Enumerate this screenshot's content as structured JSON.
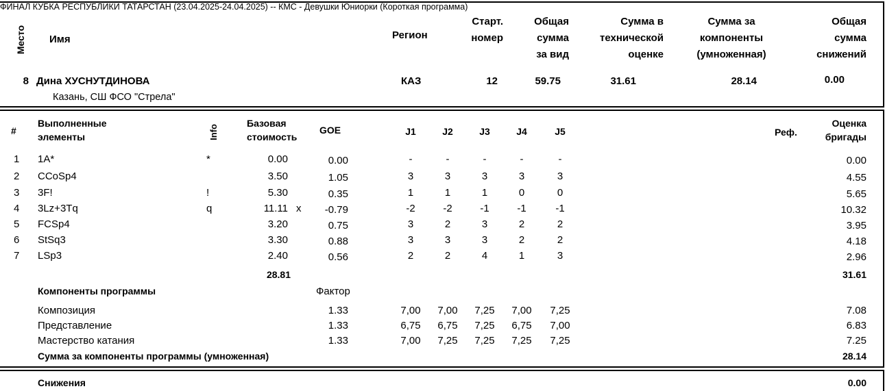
{
  "header": {
    "title": "ФИНАЛ КУБКА РЕСПУБЛИКИ ТАТАРСТАН (23.04.2025-24.04.2025)  --  КМС - Девушки Юниорки  (Короткая программа)",
    "col_place": "Место",
    "col_name": "Имя",
    "col_region": "Регион",
    "col_start_1": "Старт.",
    "col_start_2": "номер",
    "col_total_1": "Общая",
    "col_total_2": "сумма",
    "col_total_3": "за вид",
    "col_tech_1": "Сумма в",
    "col_tech_2": "технической",
    "col_tech_3": "оценке",
    "col_comp_1": "Сумма за",
    "col_comp_2": "компоненты",
    "col_comp_3": "(умноженная)",
    "col_ded_1": "Общая",
    "col_ded_2": "сумма",
    "col_ded_3": "снижений"
  },
  "skater": {
    "place": "8",
    "name": "Дина ХУСНУТДИНОВА",
    "club": "Казань, СШ ФСО \"Стрела\"",
    "region": "КАЗ",
    "start_no": "12",
    "total": "59.75",
    "tes": "31.61",
    "pcs": "28.14",
    "deductions": "0.00"
  },
  "elements_header": {
    "num": "#",
    "elements_1": "Выполненные",
    "elements_2": "элементы",
    "info": "Info",
    "base_1": "Базовая",
    "base_2": "стоимость",
    "goe": "GOE",
    "j1": "J1",
    "j2": "J2",
    "j3": "J3",
    "j4": "J4",
    "j5": "J5",
    "ref": "Реф.",
    "score_1": "Оценка",
    "score_2": "бригады"
  },
  "elements": [
    {
      "num": "1",
      "name": "1A*",
      "info": "*",
      "base": "0.00",
      "x": "",
      "goe": "0.00",
      "j": [
        "-",
        "-",
        "-",
        "-",
        "-"
      ],
      "score": "0.00"
    },
    {
      "num": "2",
      "name": "CCoSp4",
      "info": "",
      "base": "3.50",
      "x": "",
      "goe": "1.05",
      "j": [
        "3",
        "3",
        "3",
        "3",
        "3"
      ],
      "score": "4.55"
    },
    {
      "num": "3",
      "name": "3F!",
      "info": "!",
      "base": "5.30",
      "x": "",
      "goe": "0.35",
      "j": [
        "1",
        "1",
        "1",
        "0",
        "0"
      ],
      "score": "5.65"
    },
    {
      "num": "4",
      "name": "3Lz+3Tq",
      "info": "q",
      "base": "11.11",
      "x": "x",
      "goe": "-0.79",
      "j": [
        "-2",
        "-2",
        "-1",
        "-1",
        "-1"
      ],
      "score": "10.32"
    },
    {
      "num": "5",
      "name": "FCSp4",
      "info": "",
      "base": "3.20",
      "x": "",
      "goe": "0.75",
      "j": [
        "3",
        "2",
        "3",
        "2",
        "2"
      ],
      "score": "3.95"
    },
    {
      "num": "6",
      "name": "StSq3",
      "info": "",
      "base": "3.30",
      "x": "",
      "goe": "0.88",
      "j": [
        "3",
        "3",
        "3",
        "2",
        "2"
      ],
      "score": "4.18"
    },
    {
      "num": "7",
      "name": "LSp3",
      "info": "",
      "base": "2.40",
      "x": "",
      "goe": "0.56",
      "j": [
        "2",
        "2",
        "4",
        "1",
        "3"
      ],
      "score": "2.96"
    }
  ],
  "elements_total": {
    "base": "28.81",
    "score": "31.61"
  },
  "components_header": {
    "label": "Компоненты программы",
    "factor": "Фактор"
  },
  "components": [
    {
      "name": "Композиция",
      "factor": "1.33",
      "j": [
        "7,00",
        "7,00",
        "7,25",
        "7,00",
        "7,25"
      ],
      "score": "7.08"
    },
    {
      "name": "Представление",
      "factor": "1.33",
      "j": [
        "6,75",
        "6,75",
        "7,25",
        "6,75",
        "7,00"
      ],
      "score": "6.83"
    },
    {
      "name": "Мастерство катания",
      "factor": "1.33",
      "j": [
        "7,00",
        "7,25",
        "7,25",
        "7,25",
        "7,25"
      ],
      "score": "7.25"
    }
  ],
  "components_total": {
    "label": "Сумма за компоненты программы (умноженная)",
    "score": "28.14"
  },
  "deductions": {
    "label": "Снижения",
    "value": "0.00"
  }
}
